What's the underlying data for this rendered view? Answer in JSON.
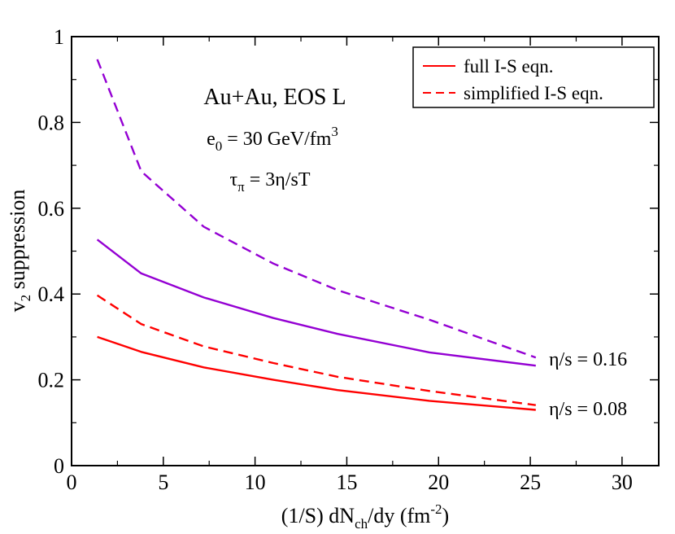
{
  "chart_data": {
    "type": "line",
    "xlabel": {
      "pre": "(1/S) dN",
      "sub": "ch",
      "mid": "/dy (fm",
      "sup": "-2",
      "post": ")"
    },
    "ylabel": {
      "v": "v",
      "sub": "2",
      "rest": " suppression"
    },
    "xlim": [
      0,
      32
    ],
    "ylim": [
      0,
      1
    ],
    "x_ticks": [
      0,
      5,
      10,
      15,
      20,
      25,
      30
    ],
    "x_tick_labels": [
      "0",
      "5",
      "10",
      "15",
      "20",
      "25",
      "30"
    ],
    "y_ticks": [
      0,
      0.2,
      0.4,
      0.6,
      0.8,
      1
    ],
    "y_tick_labels": [
      "0",
      "0.2",
      "0.4",
      "0.6",
      "0.8",
      "1"
    ],
    "series": [
      {
        "name": "full I-S eqn., η/s = 0.16",
        "color": "#9400d3",
        "dash": "solid",
        "x": [
          1.4,
          3.8,
          7.2,
          11,
          14.5,
          19.5,
          25.3
        ],
        "y": [
          0.527,
          0.448,
          0.392,
          0.344,
          0.307,
          0.264,
          0.233
        ]
      },
      {
        "name": "simplified I-S eqn., η/s = 0.16",
        "color": "#9400d3",
        "dash": "dashed",
        "x": [
          1.4,
          3.8,
          7.2,
          11,
          14.5,
          19.5,
          25.3
        ],
        "y": [
          0.947,
          0.686,
          0.557,
          0.471,
          0.409,
          0.34,
          0.252
        ]
      },
      {
        "name": "full I-S eqn., η/s = 0.08",
        "color": "#ff0000",
        "dash": "solid",
        "x": [
          1.4,
          3.8,
          7.2,
          11,
          14.5,
          19.5,
          22.5,
          25.3
        ],
        "y": [
          0.3,
          0.265,
          0.229,
          0.2,
          0.176,
          0.151,
          0.14,
          0.13
        ]
      },
      {
        "name": "simplified I-S eqn., η/s = 0.08",
        "color": "#ff0000",
        "dash": "dashed",
        "x": [
          1.4,
          3.8,
          7.2,
          11,
          14.5,
          19.5,
          25.3
        ],
        "y": [
          0.397,
          0.33,
          0.278,
          0.239,
          0.207,
          0.174,
          0.141
        ]
      }
    ],
    "legend": {
      "position": "top-right",
      "entries": [
        {
          "label": "full I-S eqn.",
          "color": "#ff0000",
          "dash": "solid"
        },
        {
          "label": "simplified I-S eqn.",
          "color": "#ff0000",
          "dash": "dashed"
        }
      ]
    },
    "annotations": {
      "system": "Au+Au, EOS L",
      "energy": {
        "pre": "e",
        "sub": "0",
        "mid": " = 30 GeV/fm",
        "sup": "3"
      },
      "tau": {
        "pre": "τ",
        "sub": "π",
        "mid": " = 3η/sT"
      },
      "eta_high": "η/s = 0.16",
      "eta_low": "η/s = 0.08"
    }
  }
}
